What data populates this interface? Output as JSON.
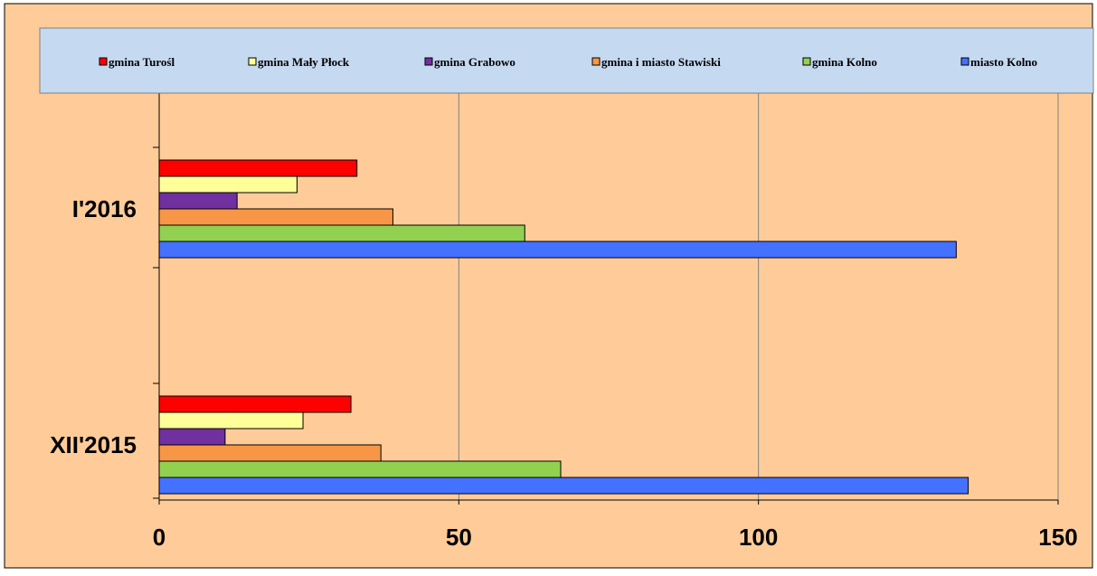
{
  "chart_data": {
    "type": "bar",
    "orientation": "horizontal",
    "categories": [
      "I'2016",
      "XII'2015"
    ],
    "series": [
      {
        "name": "gmina Turośl",
        "color": "#ff0000",
        "values": [
          33,
          32
        ]
      },
      {
        "name": "gmina Mały Płock",
        "color": "#ffff99",
        "values": [
          23,
          24
        ]
      },
      {
        "name": "gmina Grabowo",
        "color": "#7030a0",
        "values": [
          13,
          11
        ]
      },
      {
        "name": "gmina i miasto Stawiski",
        "color": "#f79646",
        "values": [
          39,
          37
        ]
      },
      {
        "name": "gmina Kolno",
        "color": "#92d050",
        "values": [
          61,
          67
        ]
      },
      {
        "name": "miasto Kolno",
        "color": "#4472ff",
        "values": [
          133,
          135
        ]
      }
    ],
    "xlim": [
      0,
      150
    ],
    "xticks": [
      0,
      50,
      100,
      150
    ],
    "xtick_labels": [
      "0",
      "50",
      "100",
      "150"
    ],
    "grid": true,
    "legend_position": "top",
    "title": "",
    "xlabel": "",
    "ylabel": ""
  },
  "colors": {
    "background": "#ffcc99",
    "legend_background": "#c5d9f1",
    "grid": "#808080"
  }
}
